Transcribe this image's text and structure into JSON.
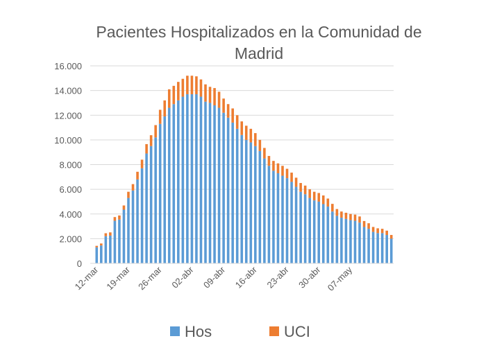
{
  "chart_data": {
    "type": "bar",
    "stacked": true,
    "title": "Pacientes Hospitalizados en la Comunidad de Madrid",
    "xlabel": "",
    "ylabel": "",
    "ylim": [
      0,
      16000
    ],
    "yticks": [
      "0",
      "2.000",
      "4.000",
      "6.000",
      "8.000",
      "10.000",
      "12.000",
      "14.000",
      "16.000"
    ],
    "xtick_labels": [
      {
        "label": "12-mar",
        "index": 0
      },
      {
        "label": "19-mar",
        "index": 7
      },
      {
        "label": "26-mar",
        "index": 14
      },
      {
        "label": "02-abr",
        "index": 21
      },
      {
        "label": "09-abr",
        "index": 28
      },
      {
        "label": "16-abr",
        "index": 35
      },
      {
        "label": "23-abr",
        "index": 42
      },
      {
        "label": "30-abr",
        "index": 49
      },
      {
        "label": "07-may",
        "index": 56
      }
    ],
    "grid": true,
    "legend_position": "bottom",
    "colors": {
      "Hos": "#5b9bd5",
      "UCI": "#ed7d31"
    },
    "series": [
      {
        "name": "Hos",
        "values": [
          1300,
          1450,
          2200,
          2250,
          3450,
          3550,
          4350,
          5300,
          5900,
          6800,
          7700,
          8900,
          9500,
          10200,
          11300,
          11900,
          12600,
          12900,
          13200,
          13500,
          13700,
          13700,
          13700,
          13500,
          13100,
          13000,
          12800,
          12600,
          12200,
          11800,
          11400,
          10900,
          10400,
          10000,
          9800,
          9500,
          9100,
          8500,
          7900,
          7500,
          7300,
          7100,
          6900,
          6600,
          6200,
          5800,
          5600,
          5300,
          5100,
          5000,
          4800,
          4600,
          4200,
          3850,
          3700,
          3600,
          3500,
          3450,
          3300,
          2950,
          2800,
          2550,
          2450,
          2450,
          2300,
          2000
        ]
      },
      {
        "name": "UCI",
        "values": [
          120,
          160,
          240,
          260,
          300,
          330,
          340,
          500,
          520,
          620,
          700,
          760,
          880,
          1000,
          1140,
          1300,
          1500,
          1480,
          1500,
          1450,
          1500,
          1500,
          1450,
          1400,
          1400,
          1300,
          1400,
          1300,
          1150,
          1100,
          1150,
          1100,
          1100,
          1150,
          1100,
          1050,
          900,
          850,
          800,
          800,
          800,
          800,
          760,
          750,
          740,
          710,
          700,
          700,
          700,
          700,
          700,
          650,
          620,
          550,
          500,
          500,
          500,
          500,
          500,
          480,
          450,
          400,
          390,
          350,
          350,
          300
        ]
      }
    ]
  }
}
